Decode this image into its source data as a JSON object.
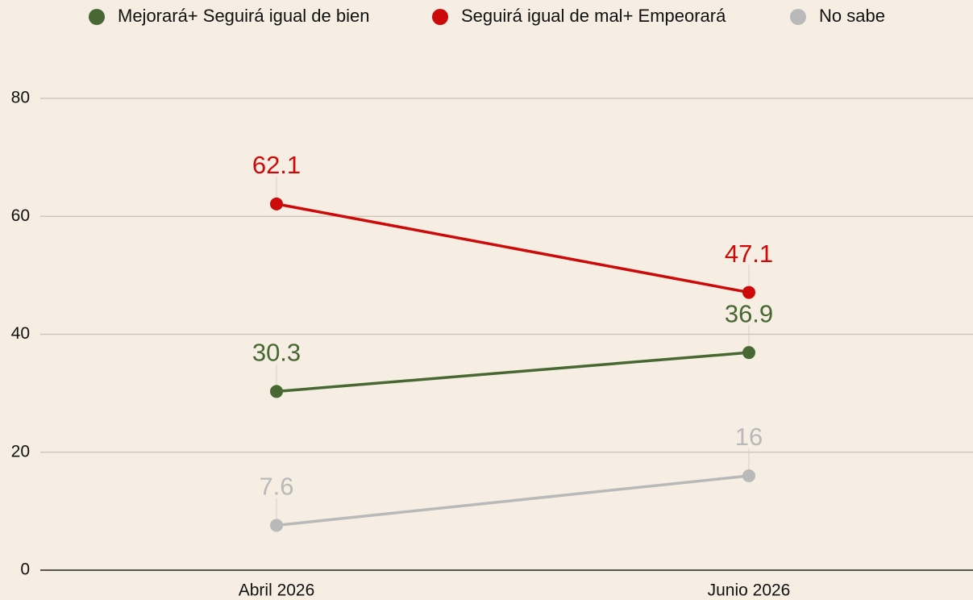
{
  "chart_data": {
    "type": "line",
    "categories": [
      "Abril 2026",
      "Junio 2026"
    ],
    "series": [
      {
        "name": "Mejorará+ Seguirá igual de bien",
        "color": "#476733",
        "values": [
          30.3,
          36.9
        ]
      },
      {
        "name": "Seguirá igual de mal+ Empeorará",
        "color": "#cc0a0a",
        "values": [
          62.1,
          47.1
        ]
      },
      {
        "name": "No sabe",
        "color": "#b9b9b9",
        "values": [
          7.6,
          16
        ]
      }
    ],
    "ylim": [
      0,
      80
    ],
    "yticks": [
      0,
      20,
      40,
      60,
      80
    ],
    "grid": true,
    "legend": "top"
  }
}
